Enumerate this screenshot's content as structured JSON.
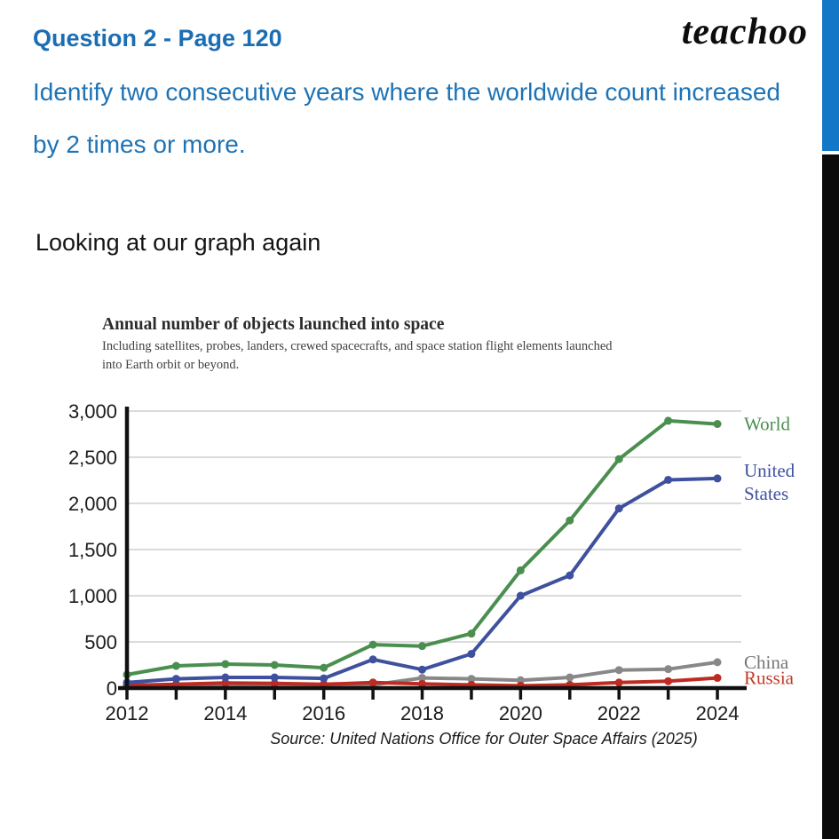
{
  "header": {
    "title": "Question 2 - Page 120",
    "logo": "teachoo"
  },
  "question": {
    "line1": "Identify two consecutive years where the worldwide count increased",
    "line2": "by 2 times or more."
  },
  "note": "Looking at our graph again",
  "colors": {
    "heading_blue": "#1b6eb4",
    "body_blue": "#1d73b6",
    "edge_blue": "#1377c8",
    "edge_black": "#0b0b0b",
    "gridline": "#cfcfcf",
    "axis": "#111111"
  },
  "chart_data": {
    "type": "line",
    "title": "Annual number of objects launched into space",
    "subtitle_line1": "Including satellites, probes, landers, crewed spacecrafts, and space station flight elements launched",
    "subtitle_line2": "into Earth orbit or beyond.",
    "source": "Source: United Nations Office for Outer Space Affairs (2025)",
    "x": [
      2012,
      2013,
      2014,
      2015,
      2016,
      2017,
      2018,
      2019,
      2020,
      2021,
      2022,
      2023,
      2024
    ],
    "x_tick_labels": [
      "2012",
      "2014",
      "2016",
      "2018",
      "2020",
      "2022",
      "2024"
    ],
    "y_tick_labels": [
      "0",
      "500",
      "1,000",
      "1,500",
      "2,000",
      "2,500",
      "3,000"
    ],
    "y_ticks": [
      0,
      500,
      1000,
      1500,
      2000,
      2500,
      3000
    ],
    "ylim": [
      0,
      3000
    ],
    "grid": "horizontal",
    "legend_position": "right-of-plot",
    "series": [
      {
        "name": "China",
        "label_lines": [
          "China"
        ],
        "color": "#888888",
        "label_color": "#76777a",
        "values": [
          25,
          30,
          35,
          40,
          35,
          35,
          110,
          100,
          85,
          115,
          195,
          205,
          280
        ]
      },
      {
        "name": "Russia",
        "label_lines": [
          "Russia"
        ],
        "color": "#be2b22",
        "label_color": "#c23b28",
        "values": [
          30,
          40,
          55,
          50,
          40,
          60,
          45,
          35,
          25,
          35,
          60,
          75,
          110
        ]
      },
      {
        "name": "United States",
        "label_lines": [
          "United",
          "States"
        ],
        "color": "#3f519e",
        "label_color": "#3f519e",
        "values": [
          60,
          100,
          115,
          115,
          105,
          310,
          200,
          370,
          1000,
          1220,
          1945,
          2255,
          2270
        ]
      },
      {
        "name": "World",
        "label_lines": [
          "World"
        ],
        "color": "#4a8f4f",
        "label_color": "#4a8f4f",
        "values": [
          145,
          240,
          260,
          250,
          220,
          470,
          455,
          590,
          1275,
          1815,
          2480,
          2895,
          2860
        ]
      }
    ]
  }
}
